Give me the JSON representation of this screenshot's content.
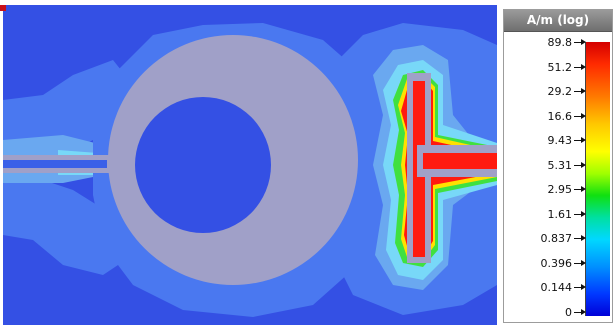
{
  "legend": {
    "title": "A/m (log)",
    "ticks": [
      "89.8",
      "51.2",
      "29.2",
      "16.6",
      "9.43",
      "5.31",
      "2.95",
      "1.61",
      "0.837",
      "0.396",
      "0.144",
      "0"
    ]
  },
  "colors": {
    "background_field": "#3450e4",
    "low_field": "#2a48dc",
    "mid_field": "#4a78f0",
    "light_field": "#6aa8f0",
    "cyan_field": "#78d8f8",
    "high_field": "#ff1a10",
    "yellow_field": "#ffe000",
    "green_field": "#40e040",
    "metal": "#a0a0c8",
    "corner_marker": "#c8101a"
  }
}
